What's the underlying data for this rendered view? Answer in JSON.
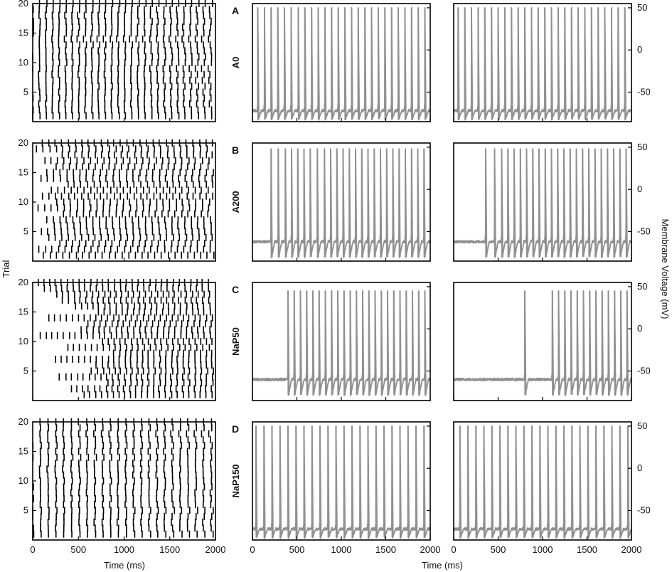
{
  "figure": {
    "y_axis_label_left": "Trial",
    "y_axis_label_right": "Membrane Voltage (mV)",
    "x_axis_label_raster": "Time (ms)",
    "x_axis_label_traces": "Time (ms)",
    "trace_color": "#909090",
    "raster_color": "#000000"
  },
  "chart_data": [
    {
      "type": "scatter",
      "panel": "A",
      "condition": "A0",
      "raster": {
        "xlim": [
          0,
          2000
        ],
        "ylim": [
          0,
          20
        ],
        "xticks": [
          0,
          500,
          1000,
          1500,
          2000
        ],
        "yticks": [
          5,
          10,
          15,
          20
        ],
        "trials": 20,
        "isi_ms": 72,
        "onset_ms": [
          0,
          0,
          0,
          0,
          0,
          0,
          0,
          0,
          0,
          0,
          0,
          0,
          0,
          0,
          0,
          0,
          0,
          0,
          0,
          0
        ]
      },
      "traces": [
        {
          "xlim": [
            0,
            2000
          ],
          "ylim": [
            -85,
            55
          ],
          "yticks": [
            -50,
            0,
            50
          ],
          "rest_mv": -72,
          "peak_mv": 50,
          "trough_mv": -82,
          "spike_times_ms": [
            60,
            135,
            210,
            285,
            360,
            435,
            515,
            590,
            665,
            740,
            815,
            890,
            965,
            1040,
            1115,
            1190,
            1265,
            1340,
            1415,
            1490,
            1565,
            1640,
            1715,
            1790,
            1865,
            1940
          ]
        },
        {
          "xlim": [
            0,
            2000
          ],
          "ylim": [
            -85,
            55
          ],
          "yticks": [
            -50,
            0,
            50
          ],
          "rest_mv": -72,
          "peak_mv": 50,
          "trough_mv": -82,
          "spike_times_ms": [
            50,
            125,
            200,
            275,
            350,
            425,
            500,
            575,
            650,
            725,
            800,
            875,
            950,
            1025,
            1100,
            1175,
            1250,
            1325,
            1400,
            1475,
            1550,
            1625,
            1700,
            1775,
            1850,
            1925
          ]
        }
      ]
    },
    {
      "type": "scatter",
      "panel": "B",
      "condition": "A200",
      "raster": {
        "xlim": [
          0,
          2000
        ],
        "ylim": [
          0,
          20
        ],
        "xticks": [
          0,
          500,
          1000,
          1500,
          2000
        ],
        "yticks": [
          5,
          10,
          15,
          20
        ],
        "trials": 20,
        "isi_ms": 72,
        "onset_ms": [
          120,
          60,
          300,
          180,
          90,
          240,
          150,
          330,
          60,
          270,
          110,
          200,
          380,
          80,
          160,
          260,
          130,
          320,
          50,
          100
        ]
      },
      "traces": [
        {
          "xlim": [
            0,
            2000
          ],
          "ylim": [
            -85,
            55
          ],
          "yticks": [
            -50,
            0,
            50
          ],
          "rest_mv": -62,
          "peak_mv": 48,
          "trough_mv": -80,
          "spike_times_ms": [
            210,
            290,
            370,
            440,
            510,
            580,
            650,
            730,
            810,
            880,
            950,
            1020,
            1090,
            1160,
            1230,
            1300,
            1370,
            1440,
            1510,
            1580,
            1650,
            1720,
            1790,
            1860,
            1930
          ]
        },
        {
          "xlim": [
            0,
            2000
          ],
          "ylim": [
            -85,
            55
          ],
          "yticks": [
            -50,
            0,
            50
          ],
          "rest_mv": -62,
          "peak_mv": 48,
          "trough_mv": -80,
          "spike_times_ms": [
            360,
            460,
            540,
            610,
            680,
            750,
            820,
            890,
            960,
            1030,
            1100,
            1170,
            1240,
            1310,
            1380,
            1450,
            1520,
            1590,
            1660,
            1730,
            1800,
            1870,
            1940
          ]
        }
      ]
    },
    {
      "type": "scatter",
      "panel": "C",
      "condition": "NaP50",
      "raster": {
        "xlim": [
          0,
          2000
        ],
        "ylim": [
          0,
          20
        ],
        "xticks": [
          0,
          500,
          1000,
          1500,
          2000
        ],
        "yticks": [
          5,
          10,
          15,
          20
        ],
        "trials": 20,
        "isi_ms": 64,
        "onset_ms": [
          560,
          420,
          820,
          300,
          650,
          700,
          240,
          880,
          380,
          760,
          90,
          520,
          610,
          180,
          720,
          470,
          320,
          260,
          130,
          60
        ]
      },
      "traces": [
        {
          "xlim": [
            0,
            2000
          ],
          "ylim": [
            -85,
            55
          ],
          "yticks": [
            -50,
            0,
            50
          ],
          "rest_mv": -60,
          "peak_mv": 45,
          "trough_mv": -78,
          "spike_times_ms": [
            400,
            470,
            540,
            610,
            680,
            750,
            820,
            890,
            960,
            1030,
            1100,
            1170,
            1240,
            1310,
            1380,
            1450,
            1520,
            1590,
            1660,
            1730,
            1800,
            1870,
            1940
          ]
        },
        {
          "xlim": [
            0,
            2000
          ],
          "ylim": [
            -85,
            55
          ],
          "yticks": [
            -50,
            0,
            50
          ],
          "rest_mv": -60,
          "peak_mv": 45,
          "trough_mv": -78,
          "spike_times_ms": [
            800,
            1110,
            1180,
            1250,
            1320,
            1390,
            1460,
            1530,
            1600,
            1670,
            1740,
            1810,
            1880,
            1950
          ]
        }
      ]
    },
    {
      "type": "scatter",
      "panel": "D",
      "condition": "NaP150",
      "raster": {
        "xlim": [
          0,
          2000
        ],
        "ylim": [
          0,
          20
        ],
        "xticks": [
          0,
          500,
          1000,
          1500,
          2000
        ],
        "yticks": [
          5,
          10,
          15,
          20
        ],
        "trials": 20,
        "isi_ms": 85,
        "onset_ms": [
          0,
          0,
          0,
          0,
          0,
          0,
          0,
          0,
          0,
          0,
          0,
          0,
          0,
          0,
          0,
          0,
          0,
          0,
          0,
          0
        ]
      },
      "traces": [
        {
          "xlim": [
            0,
            2000
          ],
          "ylim": [
            -85,
            55
          ],
          "yticks": [
            -50,
            0,
            50
          ],
          "rest_mv": -72,
          "peak_mv": 50,
          "trough_mv": -82,
          "spike_times_ms": [
            40,
            130,
            220,
            310,
            400,
            490,
            580,
            670,
            760,
            850,
            940,
            1030,
            1120,
            1210,
            1300,
            1390,
            1480,
            1570,
            1660,
            1750,
            1840,
            1930
          ]
        },
        {
          "xlim": [
            0,
            2000
          ],
          "ylim": [
            -85,
            55
          ],
          "yticks": [
            -50,
            0,
            50
          ],
          "rest_mv": -72,
          "peak_mv": 50,
          "trough_mv": -82,
          "spike_times_ms": [
            70,
            160,
            250,
            340,
            430,
            520,
            610,
            700,
            790,
            880,
            970,
            1060,
            1150,
            1240,
            1330,
            1420,
            1510,
            1600,
            1690,
            1780,
            1870,
            1960
          ]
        }
      ]
    }
  ]
}
